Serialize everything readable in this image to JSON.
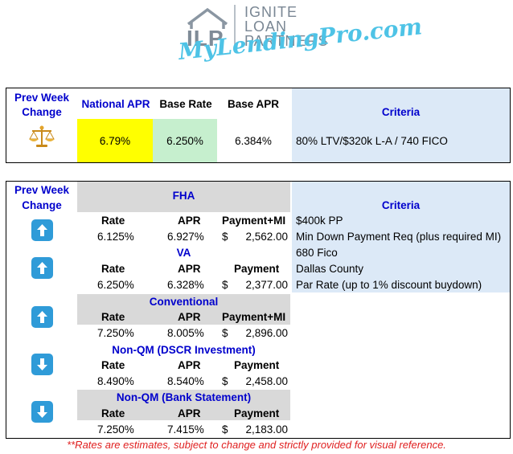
{
  "branding": {
    "logo_letters": "ILP",
    "line1": "IGNITE",
    "line2": "LOAN",
    "line3": "PARTNERS",
    "tagline": "MyLendingPro.com"
  },
  "summary": {
    "headers": {
      "prev_week": "Prev Week Change",
      "national_apr": "National APR",
      "base_rate": "Base Rate",
      "base_apr": "Base APR",
      "criteria": "Criteria"
    },
    "values": {
      "national_apr": "6.79%",
      "base_rate": "6.250%",
      "base_apr": "6.384%",
      "criteria": "80% LTV/$320k L-A / 740 FICO"
    },
    "change_icon": "scales-icon"
  },
  "products_header": {
    "prev_week": "Prev Week Change",
    "criteria": "Criteria"
  },
  "products": [
    {
      "name": "FHA",
      "col_rate": "Rate",
      "col_apr": "APR",
      "col_payment": "Payment+MI",
      "rate": "6.125%",
      "apr": "6.927%",
      "currency": "$",
      "payment": "2,562.00",
      "change": "up"
    },
    {
      "name": "VA",
      "col_rate": "Rate",
      "col_apr": "APR",
      "col_payment": "Payment",
      "rate": "6.250%",
      "apr": "6.328%",
      "currency": "$",
      "payment": "2,377.00",
      "change": "up"
    },
    {
      "name": "Conventional",
      "col_rate": "Rate",
      "col_apr": "APR",
      "col_payment": "Payment+MI",
      "rate": "7.250%",
      "apr": "8.005%",
      "currency": "$",
      "payment": "2,896.00",
      "change": "up"
    },
    {
      "name": "Non-QM (DSCR Investment)",
      "col_rate": "Rate",
      "col_apr": "APR",
      "col_payment": "Payment",
      "rate": "8.490%",
      "apr": "8.540%",
      "currency": "$",
      "payment": "2,458.00",
      "change": "down"
    },
    {
      "name": "Non-QM (Bank Statement)",
      "col_rate": "Rate",
      "col_apr": "APR",
      "col_payment": "Payment",
      "rate": "7.250%",
      "apr": "7.415%",
      "currency": "$",
      "payment": "2,183.00",
      "change": "down"
    }
  ],
  "criteria_lines": [
    "$400k PP",
    "Min Down Payment Req (plus required MI)",
    "680 Fico",
    "Dallas County",
    "Par Rate (up to 1% discount buydown)"
  ],
  "footnote": "**Rates are estimates, subject to change and strictly provided for visual reference.",
  "colors": {
    "header_blue": "#0000cc",
    "criteria_band": "#dce9f7",
    "product_gray": "#d9d9d9",
    "national_apr_fill": "#ffff00",
    "base_rate_fill": "#c6efce",
    "arrow_button": "#2f9bd8",
    "footnote_red": "#e02020",
    "tagline_cyan": "#4ec3e6"
  }
}
